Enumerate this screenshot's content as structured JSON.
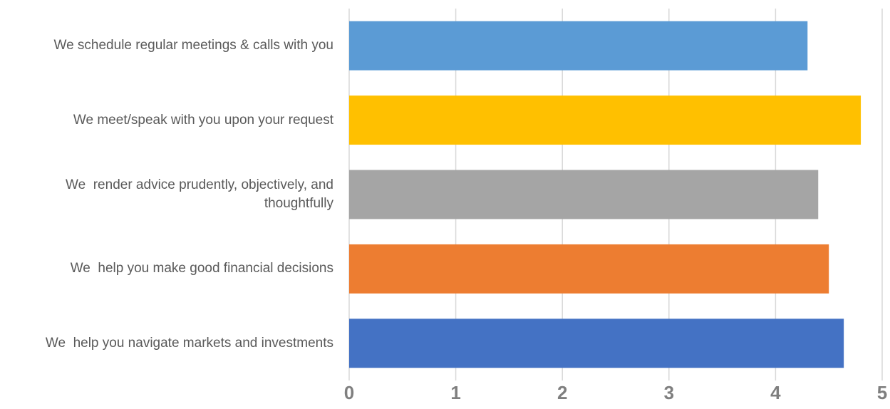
{
  "chart_data": {
    "type": "bar",
    "orientation": "horizontal",
    "categories": [
      "We schedule regular meetings & calls with you",
      "We meet/speak with you upon your request",
      "We  render advice prudently, objectively, and thoughtfully",
      "We  help you make good financial decisions",
      "We  help you navigate markets and investments"
    ],
    "values": [
      4.3,
      4.8,
      4.4,
      4.5,
      4.64
    ],
    "colors": [
      "#5b9bd5",
      "#ffc000",
      "#a5a5a5",
      "#ed7d31",
      "#4472c4"
    ],
    "xlim": [
      0,
      5
    ],
    "xticks": [
      0,
      1,
      2,
      3,
      4,
      5
    ],
    "grid": true
  }
}
